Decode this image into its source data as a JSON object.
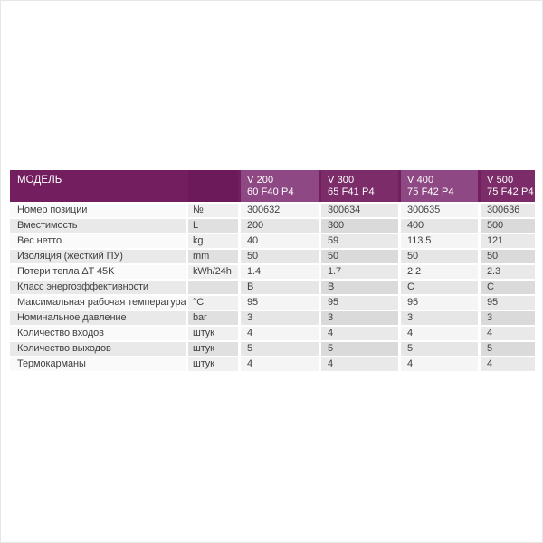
{
  "colors": {
    "header_dark": "#721e5f",
    "header_units_band": "#6c1a59",
    "header_column_light": "#8e4883",
    "header_column_dark": "#7b2c69",
    "header_text": "#ffffff",
    "body_text": "#3f3f3f",
    "row_light": "#fafafa",
    "row_gray": "#e9e9e9"
  },
  "table": {
    "header": {
      "model_label": "МОДЕЛЬ",
      "columns": [
        {
          "line1": "V 200",
          "line2": "60 F40 P4"
        },
        {
          "line1": "V 300",
          "line2": "65 F41 P4"
        },
        {
          "line1": "V 400",
          "line2": "75 F42 P4"
        },
        {
          "line1": "V 500",
          "line2": "75 F42 P4"
        }
      ]
    },
    "rows": [
      {
        "label": "Номер позиции",
        "unit": "№",
        "values": [
          "300632",
          "300634",
          "300635",
          "300636"
        ]
      },
      {
        "label": "Вместимость",
        "unit": "L",
        "values": [
          "200",
          "300",
          "400",
          "500"
        ]
      },
      {
        "label": "Вес нетто",
        "unit": "kg",
        "values": [
          "40",
          "59",
          "113.5",
          "121"
        ]
      },
      {
        "label": "Изоляция (жесткий ПУ)",
        "unit": "mm",
        "values": [
          "50",
          "50",
          "50",
          "50"
        ]
      },
      {
        "label": "Потери тепла ΔT 45K",
        "unit": "kWh/24h",
        "values": [
          "1.4",
          "1.7",
          "2.2",
          "2.3"
        ]
      },
      {
        "label": "Класс энергоэффективности",
        "unit": "",
        "values": [
          "B",
          "B",
          "C",
          "C"
        ]
      },
      {
        "label": "Максимальная рабочая температура",
        "unit": "°C",
        "values": [
          "95",
          "95",
          "95",
          "95"
        ]
      },
      {
        "label": "Номинальное давление",
        "unit": "bar",
        "values": [
          "3",
          "3",
          "3",
          "3"
        ]
      },
      {
        "label": "Количество входов",
        "unit": "штук",
        "values": [
          "4",
          "4",
          "4",
          "4"
        ]
      },
      {
        "label": "Количество выходов",
        "unit": "штук",
        "values": [
          "5",
          "5",
          "5",
          "5"
        ]
      },
      {
        "label": "Термокарманы",
        "unit": "штук",
        "values": [
          "4",
          "4",
          "4",
          "4"
        ]
      }
    ]
  }
}
